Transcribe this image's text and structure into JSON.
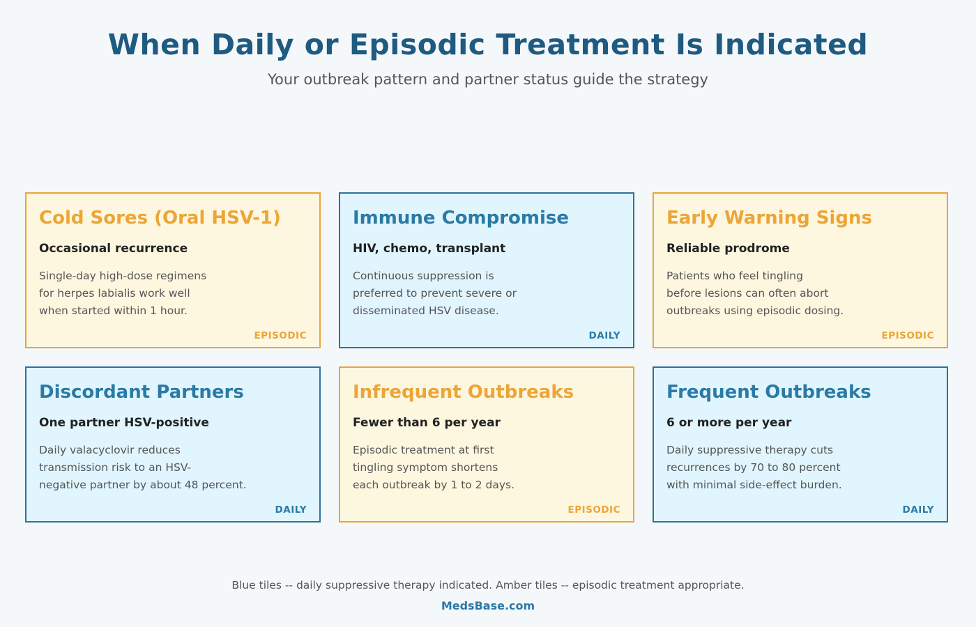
{
  "header": {
    "title": "When Daily or Episodic Treatment Is Indicated",
    "subtitle": "Your outbreak pattern and partner status guide the strategy"
  },
  "colors": {
    "daily_accent": "#2b7aa6",
    "daily_background": "#e0f5fd",
    "episodic_accent": "#eca536",
    "episodic_background": "#fdf7e0",
    "title": "#1f5a80"
  },
  "tiles": [
    {
      "kind": "episodic",
      "heading": "Cold Sores (Oral HSV-1)",
      "subheading": "Occasional recurrence",
      "lines": [
        "Single-day high-dose regimens",
        "for herpes labialis work well",
        "when started within 1 hour."
      ],
      "tag": "EPISODIC"
    },
    {
      "kind": "daily",
      "heading": "Immune Compromise",
      "subheading": "HIV, chemo, transplant",
      "lines": [
        "Continuous suppression is",
        "preferred to prevent severe or",
        "disseminated HSV disease."
      ],
      "tag": "DAILY"
    },
    {
      "kind": "episodic",
      "heading": "Early Warning Signs",
      "subheading": "Reliable prodrome",
      "lines": [
        "Patients who feel tingling",
        "before lesions can often abort",
        "outbreaks using episodic dosing."
      ],
      "tag": "EPISODIC"
    },
    {
      "kind": "daily",
      "heading": "Discordant Partners",
      "subheading": "One partner HSV-positive",
      "lines": [
        "Daily valacyclovir reduces",
        "transmission risk to an HSV-",
        "negative partner by about 48 percent."
      ],
      "tag": "DAILY"
    },
    {
      "kind": "episodic",
      "heading": "Infrequent Outbreaks",
      "subheading": "Fewer than 6 per year",
      "lines": [
        "Episodic treatment at first",
        "tingling symptom shortens",
        "each outbreak by 1 to 2 days."
      ],
      "tag": "EPISODIC"
    },
    {
      "kind": "daily",
      "heading": "Frequent Outbreaks",
      "subheading": "6 or more per year",
      "lines": [
        "Daily suppressive therapy cuts",
        "recurrences by 70 to 80 percent",
        "with minimal side-effect burden."
      ],
      "tag": "DAILY"
    }
  ],
  "footer": {
    "legend": "Blue tiles -- daily suppressive therapy indicated. Amber tiles -- episodic treatment appropriate.",
    "brand": "MedsBase.com"
  }
}
